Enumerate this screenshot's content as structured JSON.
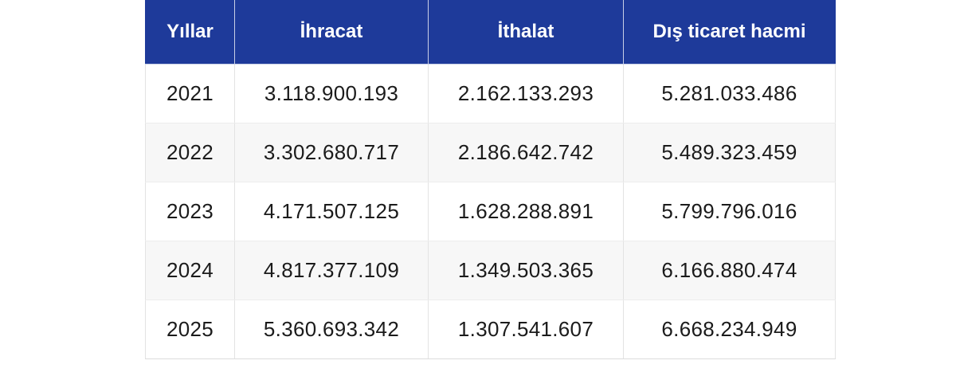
{
  "table": {
    "headers": [
      "Yıllar",
      "İhracat",
      "İthalat",
      "Dış ticaret hacmi"
    ],
    "rows": [
      [
        "2021",
        "3.118.900.193",
        "2.162.133.293",
        "5.281.033.486"
      ],
      [
        "2022",
        "3.302.680.717",
        "2.186.642.742",
        "5.489.323.459"
      ],
      [
        "2023",
        "4.171.507.125",
        "1.628.288.891",
        "5.799.796.016"
      ],
      [
        "2024",
        "4.817.377.109",
        "1.349.503.365",
        "6.166.880.474"
      ],
      [
        "2025",
        "5.360.693.342",
        "1.307.541.607",
        "6.668.234.949"
      ]
    ]
  },
  "colors": {
    "header_bg": "#1e3a9a",
    "header_text": "#ffffff",
    "row_bg": "#ffffff",
    "row_alt_bg": "#f7f7f7",
    "body_text": "#1b1b1b",
    "border": "#e3e3e3"
  },
  "chart_data": {
    "type": "table",
    "columns": [
      "Yıllar",
      "İhracat",
      "İthalat",
      "Dış ticaret hacmi"
    ],
    "rows": [
      {
        "year": "2021",
        "ihracat": "3.118.900.193",
        "ithalat": "2.162.133.293",
        "dis_ticaret_hacmi": "5.281.033.486"
      },
      {
        "year": "2022",
        "ihracat": "3.302.680.717",
        "ithalat": "2.186.642.742",
        "dis_ticaret_hacmi": "5.489.323.459"
      },
      {
        "year": "2023",
        "ihracat": "4.171.507.125",
        "ithalat": "1.628.288.891",
        "dis_ticaret_hacmi": "5.799.796.016"
      },
      {
        "year": "2024",
        "ihracat": "4.817.377.109",
        "ithalat": "1.349.503.365",
        "dis_ticaret_hacmi": "6.166.880.474"
      },
      {
        "year": "2025",
        "ihracat": "5.360.693.342",
        "ithalat": "1.307.541.607",
        "dis_ticaret_hacmi": "6.668.234.949"
      }
    ]
  }
}
